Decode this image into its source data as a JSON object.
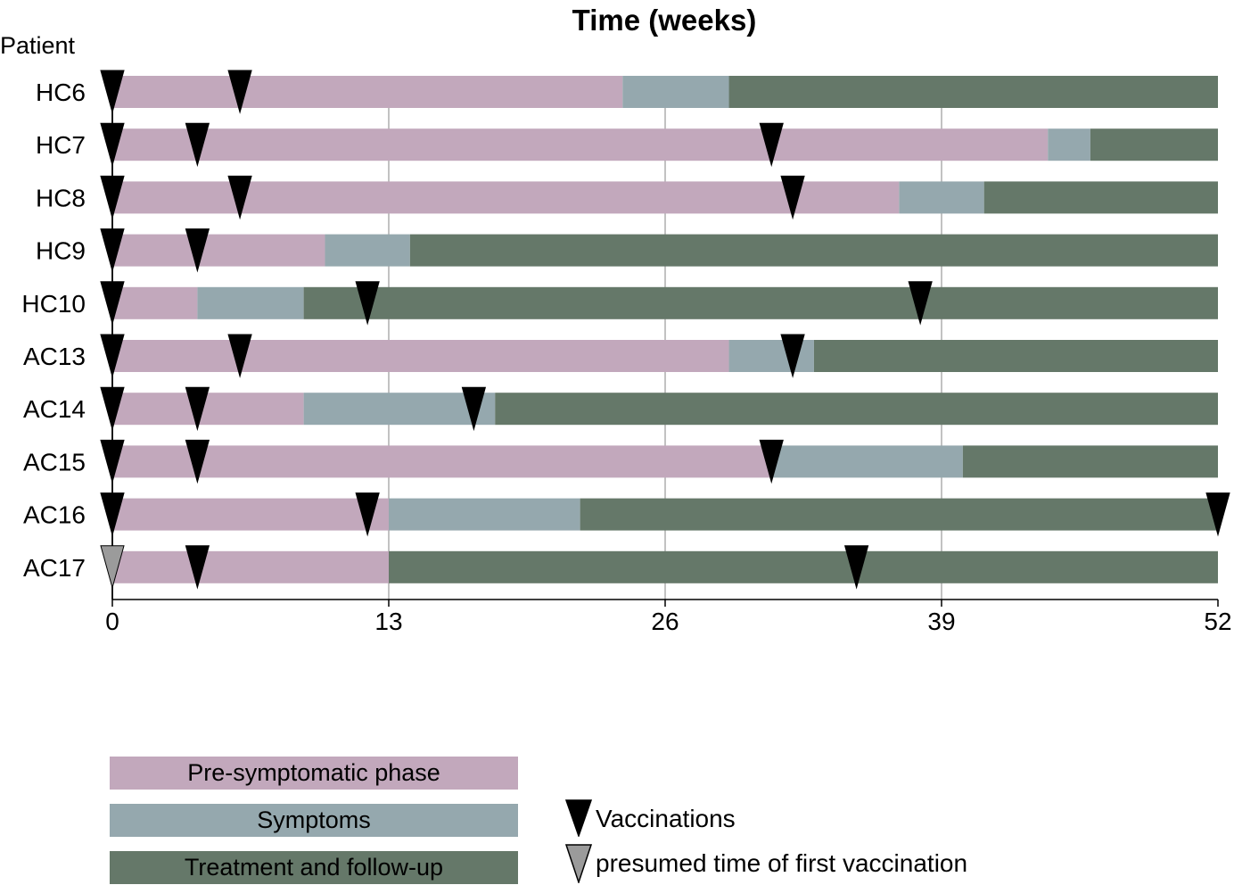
{
  "chart_data": {
    "type": "bar",
    "subtype": "horizontal-stacked-timeline",
    "title": "Time (weeks)",
    "ylabel": "Patient",
    "xlim": [
      0,
      52
    ],
    "xticks": [
      0,
      13,
      26,
      39,
      52
    ],
    "grid": "vertical at 13, 26, 39",
    "colors": {
      "pre": "#c2a8bc",
      "symptoms": "#95a8ae",
      "treatment": "#657869",
      "vaccination": "#000000",
      "presumed": "#9b9b9b"
    },
    "legend": {
      "phases": [
        {
          "key": "pre",
          "label": "Pre-symptomatic phase"
        },
        {
          "key": "symptoms",
          "label": "Symptoms"
        },
        {
          "key": "treatment",
          "label": "Treatment and follow-up"
        }
      ],
      "markers": [
        {
          "key": "vaccination",
          "label": "Vaccinations"
        },
        {
          "key": "presumed",
          "label": "presumed time of first vaccination"
        }
      ]
    },
    "patients": [
      {
        "name": "HC6",
        "symptom_onset": 24,
        "treatment_start": 29,
        "end": 52,
        "vaccinations": [
          0,
          6
        ],
        "presumed_first": false
      },
      {
        "name": "HC7",
        "symptom_onset": 44,
        "treatment_start": 46,
        "end": 52,
        "vaccinations": [
          0,
          4,
          31
        ],
        "presumed_first": false
      },
      {
        "name": "HC8",
        "symptom_onset": 37,
        "treatment_start": 41,
        "end": 52,
        "vaccinations": [
          0,
          6,
          32
        ],
        "presumed_first": false
      },
      {
        "name": "HC9",
        "symptom_onset": 10,
        "treatment_start": 14,
        "end": 52,
        "vaccinations": [
          0,
          4
        ],
        "presumed_first": false
      },
      {
        "name": "HC10",
        "symptom_onset": 4,
        "treatment_start": 9,
        "end": 52,
        "vaccinations": [
          0,
          12,
          38
        ],
        "presumed_first": false
      },
      {
        "name": "AC13",
        "symptom_onset": 29,
        "treatment_start": 33,
        "end": 52,
        "vaccinations": [
          0,
          6,
          32
        ],
        "presumed_first": false
      },
      {
        "name": "AC14",
        "symptom_onset": 9,
        "treatment_start": 18,
        "end": 52,
        "vaccinations": [
          0,
          4,
          17
        ],
        "presumed_first": false
      },
      {
        "name": "AC15",
        "symptom_onset": 31,
        "treatment_start": 40,
        "end": 52,
        "vaccinations": [
          0,
          4,
          31
        ],
        "presumed_first": false
      },
      {
        "name": "AC16",
        "symptom_onset": 13,
        "treatment_start": 22,
        "end": 52,
        "vaccinations": [
          0,
          12,
          52
        ],
        "presumed_first": false
      },
      {
        "name": "AC17",
        "symptom_onset": null,
        "treatment_start": 13,
        "end": 52,
        "vaccinations": [
          0,
          4,
          35
        ],
        "presumed_first": true
      }
    ]
  }
}
